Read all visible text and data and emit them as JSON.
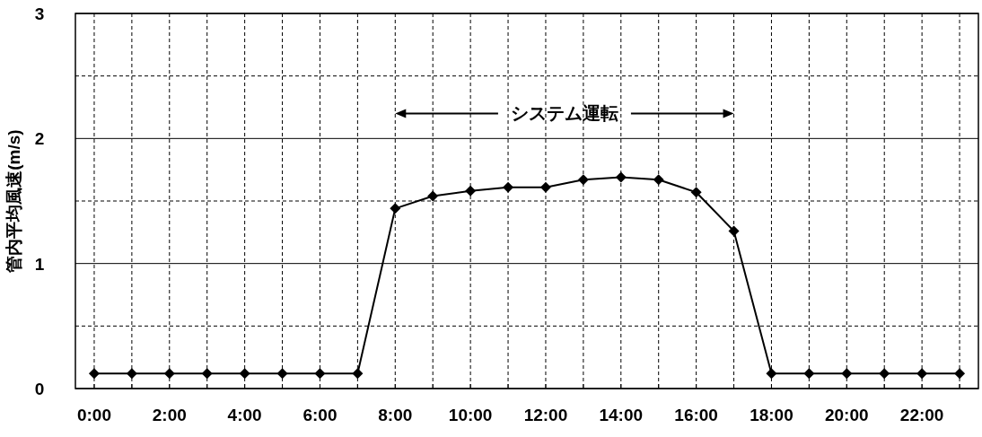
{
  "chart_data": {
    "type": "line",
    "ylabel": "管内平均風速(m/s)",
    "x": [
      0,
      1,
      2,
      3,
      4,
      5,
      6,
      7,
      8,
      9,
      10,
      11,
      12,
      13,
      14,
      15,
      16,
      17,
      18,
      19,
      20,
      21,
      22,
      23
    ],
    "series": [
      {
        "color": "#000000",
        "values": [
          0.12,
          0.12,
          0.12,
          0.12,
          0.12,
          0.12,
          0.12,
          0.12,
          1.44,
          1.54,
          1.58,
          1.61,
          1.61,
          1.67,
          1.69,
          1.67,
          1.57,
          1.26,
          0.12,
          0.12,
          0.12,
          0.12,
          0.12,
          0.12
        ]
      }
    ],
    "xlim": [
      -0.5,
      23.5
    ],
    "xticks": [
      {
        "value": 0,
        "label": "0:00"
      },
      {
        "value": 1,
        "label": null
      },
      {
        "value": 2,
        "label": "2:00"
      },
      {
        "value": 3,
        "label": null
      },
      {
        "value": 4,
        "label": "4:00"
      },
      {
        "value": 5,
        "label": null
      },
      {
        "value": 6,
        "label": "6:00"
      },
      {
        "value": 7,
        "label": null
      },
      {
        "value": 8,
        "label": "8:00"
      },
      {
        "value": 9,
        "label": null
      },
      {
        "value": 10,
        "label": "10:00"
      },
      {
        "value": 11,
        "label": null
      },
      {
        "value": 12,
        "label": "12:00"
      },
      {
        "value": 13,
        "label": null
      },
      {
        "value": 14,
        "label": "14:00"
      },
      {
        "value": 15,
        "label": null
      },
      {
        "value": 16,
        "label": "16:00"
      },
      {
        "value": 17,
        "label": null
      },
      {
        "value": 18,
        "label": "18:00"
      },
      {
        "value": 19,
        "label": null
      },
      {
        "value": 20,
        "label": "20:00"
      },
      {
        "value": 21,
        "label": null
      },
      {
        "value": 22,
        "label": "22:00"
      },
      {
        "value": 23,
        "label": null
      }
    ],
    "ylim": [
      0,
      3
    ],
    "yticks": [
      0,
      {
        "value": 0.5,
        "label": null
      },
      1,
      {
        "value": 1.5,
        "label": null
      },
      2,
      {
        "value": 2.5,
        "label": null
      },
      3
    ],
    "annotations": [
      "システム運転"
    ],
    "grid": true,
    "marker": "diamond",
    "line_style": "solid"
  }
}
